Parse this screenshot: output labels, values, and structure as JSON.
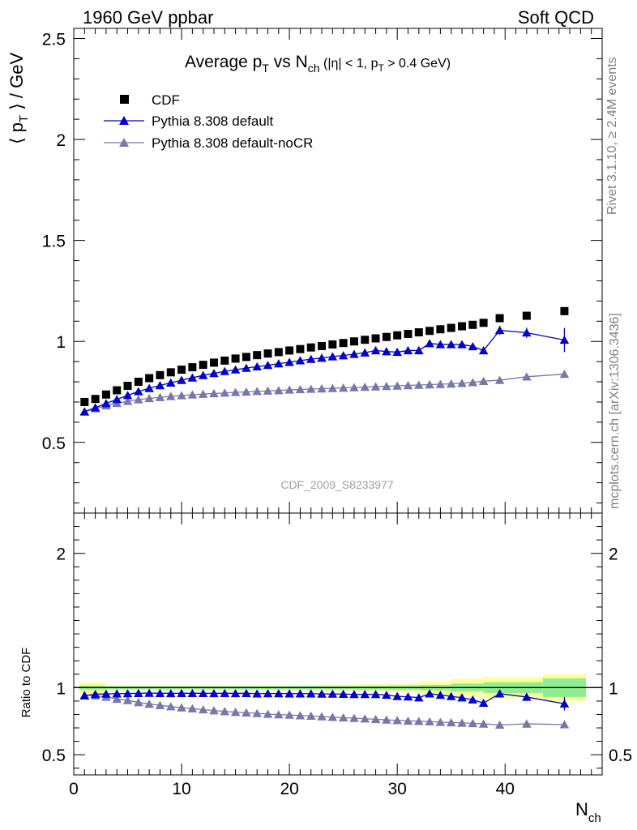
{
  "header": {
    "left": "1960 GeV ppbar",
    "right": "Soft QCD"
  },
  "side": {
    "rivet": "Rivet 3.1.10, ≥ 2.4M events",
    "mcplots": "mcplots.cern.ch [arXiv:1306.3436]"
  },
  "chart_data": [
    {
      "type": "scatter",
      "title_main": "Average p",
      "title_main_sub": "T",
      "title_vs": " vs N",
      "title_vs_sub": "ch",
      "title_cut1": " (|η| < 1, p",
      "title_cut_sub": "T",
      "title_cut2": " > 0.4 GeV)",
      "ylabel_pre": "⟨ p",
      "ylabel_sub": "T",
      "ylabel_post": " ⟩ / GeV",
      "watermark": "CDF_2009_S8233977",
      "ylim": [
        0.15,
        2.55
      ],
      "xlim": [
        0,
        49
      ],
      "yticks": [
        "0.5",
        "1",
        "1.5",
        "2",
        "2.5"
      ],
      "legend_position": "top-left",
      "series": [
        {
          "name": "CDF",
          "marker": "square",
          "color": "#000000",
          "x": [
            1,
            2,
            3,
            4,
            5,
            6,
            7,
            8,
            9,
            10,
            11,
            12,
            13,
            14,
            15,
            16,
            17,
            18,
            19,
            20,
            21,
            22,
            23,
            24,
            25,
            26,
            27,
            28,
            29,
            30,
            31,
            32,
            33,
            34,
            35,
            36,
            37,
            38,
            39.5,
            42,
            45.5
          ],
          "y": [
            0.7,
            0.715,
            0.737,
            0.758,
            0.78,
            0.8,
            0.818,
            0.833,
            0.847,
            0.86,
            0.872,
            0.884,
            0.895,
            0.905,
            0.915,
            0.923,
            0.932,
            0.94,
            0.947,
            0.955,
            0.962,
            0.97,
            0.977,
            0.985,
            0.992,
            1.0,
            1.008,
            1.015,
            1.022,
            1.03,
            1.037,
            1.045,
            1.052,
            1.06,
            1.067,
            1.075,
            1.082,
            1.092,
            1.115,
            1.127,
            1.15
          ]
        },
        {
          "name": "Pythia 8.308 default",
          "marker": "triangle",
          "color": "#0000cc",
          "x": [
            1,
            2,
            3,
            4,
            5,
            6,
            7,
            8,
            9,
            10,
            11,
            12,
            13,
            14,
            15,
            16,
            17,
            18,
            19,
            20,
            21,
            22,
            23,
            24,
            25,
            26,
            27,
            28,
            29,
            30,
            31,
            32,
            33,
            34,
            35,
            36,
            37,
            38,
            39.5,
            42,
            45.5
          ],
          "y": [
            0.652,
            0.672,
            0.693,
            0.713,
            0.733,
            0.752,
            0.768,
            0.782,
            0.795,
            0.808,
            0.82,
            0.832,
            0.842,
            0.852,
            0.86,
            0.868,
            0.875,
            0.882,
            0.89,
            0.897,
            0.905,
            0.912,
            0.918,
            0.925,
            0.93,
            0.937,
            0.944,
            0.955,
            0.95,
            0.947,
            0.955,
            0.955,
            0.99,
            0.985,
            0.985,
            0.985,
            0.975,
            0.955,
            1.055,
            1.043,
            1.007
          ],
          "yerr": [
            0,
            0,
            0,
            0,
            0,
            0,
            0,
            0,
            0,
            0,
            0,
            0,
            0,
            0,
            0,
            0,
            0,
            0,
            0,
            0,
            0,
            0,
            0,
            0,
            0,
            0,
            0,
            0,
            0,
            0,
            0,
            0,
            0,
            0,
            0,
            0,
            0.01,
            0.015,
            0.022,
            0.025,
            0.06
          ]
        },
        {
          "name": "Pythia 8.308 default-noCR",
          "marker": "triangle",
          "color": "#7777aa",
          "x": [
            1,
            2,
            3,
            4,
            5,
            6,
            7,
            8,
            9,
            10,
            11,
            12,
            13,
            14,
            15,
            16,
            17,
            18,
            19,
            20,
            21,
            22,
            23,
            24,
            25,
            26,
            27,
            28,
            29,
            30,
            31,
            32,
            33,
            34,
            35,
            36,
            37,
            38,
            39.5,
            42,
            45.5
          ],
          "y": [
            0.652,
            0.668,
            0.682,
            0.694,
            0.704,
            0.712,
            0.718,
            0.723,
            0.728,
            0.732,
            0.736,
            0.739,
            0.742,
            0.745,
            0.748,
            0.75,
            0.753,
            0.755,
            0.757,
            0.76,
            0.762,
            0.764,
            0.766,
            0.768,
            0.77,
            0.772,
            0.774,
            0.776,
            0.778,
            0.78,
            0.782,
            0.784,
            0.786,
            0.788,
            0.79,
            0.793,
            0.797,
            0.803,
            0.808,
            0.825,
            0.838
          ]
        }
      ]
    },
    {
      "type": "scatter",
      "ylabel": "Ratio to CDF",
      "xlabel": "N",
      "xlabel_sub": "ch",
      "ylim": [
        0.35,
        2.3
      ],
      "xlim": [
        0,
        49
      ],
      "xticks": [
        "0",
        "10",
        "20",
        "30",
        "40"
      ],
      "yticks": [
        "0.5",
        "1",
        "2"
      ],
      "band": {
        "x_edges": [
          0.5,
          3,
          5,
          8,
          11,
          14,
          17,
          20,
          23,
          26,
          29,
          32,
          35,
          38,
          41,
          43.5,
          47.5
        ],
        "inner_color": "#90ee90",
        "outer_color": "#ffff99",
        "inner_half": [
          0.015,
          0.01,
          0.01,
          0.01,
          0.01,
          0.01,
          0.01,
          0.012,
          0.012,
          0.014,
          0.016,
          0.02,
          0.03,
          0.04,
          0.04,
          0.07
        ],
        "outer_half": [
          0.04,
          0.02,
          0.018,
          0.018,
          0.018,
          0.018,
          0.018,
          0.02,
          0.022,
          0.025,
          0.03,
          0.045,
          0.065,
          0.08,
          0.08,
          0.1
        ]
      },
      "series": [
        {
          "name": "Pythia 8.308 default",
          "color": "#0000cc",
          "x": [
            1,
            2,
            3,
            4,
            5,
            6,
            7,
            8,
            9,
            10,
            11,
            12,
            13,
            14,
            15,
            16,
            17,
            18,
            19,
            20,
            21,
            22,
            23,
            24,
            25,
            26,
            27,
            28,
            29,
            30,
            31,
            32,
            33,
            34,
            35,
            36,
            37,
            38,
            39.5,
            42,
            45.5
          ],
          "y": [
            0.94,
            0.951,
            0.953,
            0.955,
            0.956,
            0.958,
            0.959,
            0.958,
            0.957,
            0.958,
            0.958,
            0.958,
            0.957,
            0.958,
            0.957,
            0.958,
            0.955,
            0.956,
            0.956,
            0.955,
            0.955,
            0.955,
            0.953,
            0.953,
            0.952,
            0.95,
            0.95,
            0.95,
            0.945,
            0.935,
            0.932,
            0.925,
            0.955,
            0.945,
            0.935,
            0.925,
            0.91,
            0.885,
            0.955,
            0.93,
            0.88
          ],
          "yerr": [
            0,
            0,
            0,
            0,
            0,
            0,
            0,
            0,
            0,
            0,
            0,
            0,
            0,
            0,
            0,
            0,
            0,
            0,
            0,
            0,
            0,
            0,
            0,
            0,
            0,
            0,
            0,
            0,
            0,
            0,
            0,
            0,
            0,
            0,
            0,
            0,
            0.01,
            0.015,
            0.02,
            0.02,
            0.05
          ]
        },
        {
          "name": "Pythia 8.308 default-noCR",
          "color": "#7777aa",
          "x": [
            1,
            2,
            3,
            4,
            5,
            6,
            7,
            8,
            9,
            10,
            11,
            12,
            13,
            14,
            15,
            16,
            17,
            18,
            19,
            20,
            21,
            22,
            23,
            24,
            25,
            26,
            27,
            28,
            29,
            30,
            31,
            32,
            33,
            34,
            35,
            36,
            37,
            38,
            39.5,
            42,
            45.5
          ],
          "y": [
            0.945,
            0.94,
            0.93,
            0.915,
            0.905,
            0.89,
            0.878,
            0.868,
            0.859,
            0.851,
            0.844,
            0.836,
            0.829,
            0.823,
            0.817,
            0.813,
            0.808,
            0.803,
            0.799,
            0.796,
            0.792,
            0.789,
            0.784,
            0.78,
            0.776,
            0.772,
            0.768,
            0.764,
            0.76,
            0.756,
            0.752,
            0.75,
            0.747,
            0.743,
            0.74,
            0.737,
            0.734,
            0.73,
            0.722,
            0.73,
            0.725
          ]
        }
      ]
    }
  ]
}
